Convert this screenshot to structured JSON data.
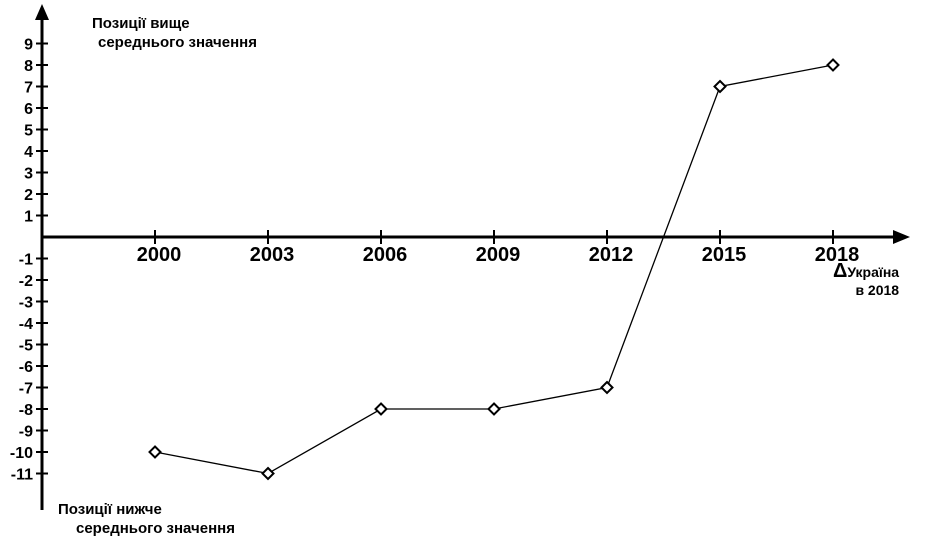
{
  "chart_data": {
    "type": "line",
    "title": "",
    "xlabel": "",
    "ylabel": "",
    "categories": [
      "2000",
      "2003",
      "2006",
      "2009",
      "2012",
      "2015",
      "2018"
    ],
    "series": [
      {
        "values": [
          -10,
          -11,
          -8,
          -8,
          -7,
          7,
          8
        ]
      }
    ],
    "yticks": [
      "9",
      "8",
      "7",
      "6",
      "5",
      "4",
      "3",
      "2",
      "1",
      "-1",
      "-2",
      "-3",
      "-4",
      "-5",
      "-6",
      "-7",
      "-8",
      "-9",
      "-10",
      "-11"
    ],
    "ylim": [
      -12,
      10
    ],
    "grid": false,
    "legend": "none",
    "marker": "diamond-open",
    "line_color": "#000000",
    "annotations": {
      "above_line1": "Позиції вище",
      "above_line2": "середнього значення",
      "below_line1": "Позиції нижче",
      "below_line2": "середнього значення",
      "marker_symbol": "Δ",
      "marker_label1": "Україна",
      "marker_label2": "в 2018"
    }
  }
}
